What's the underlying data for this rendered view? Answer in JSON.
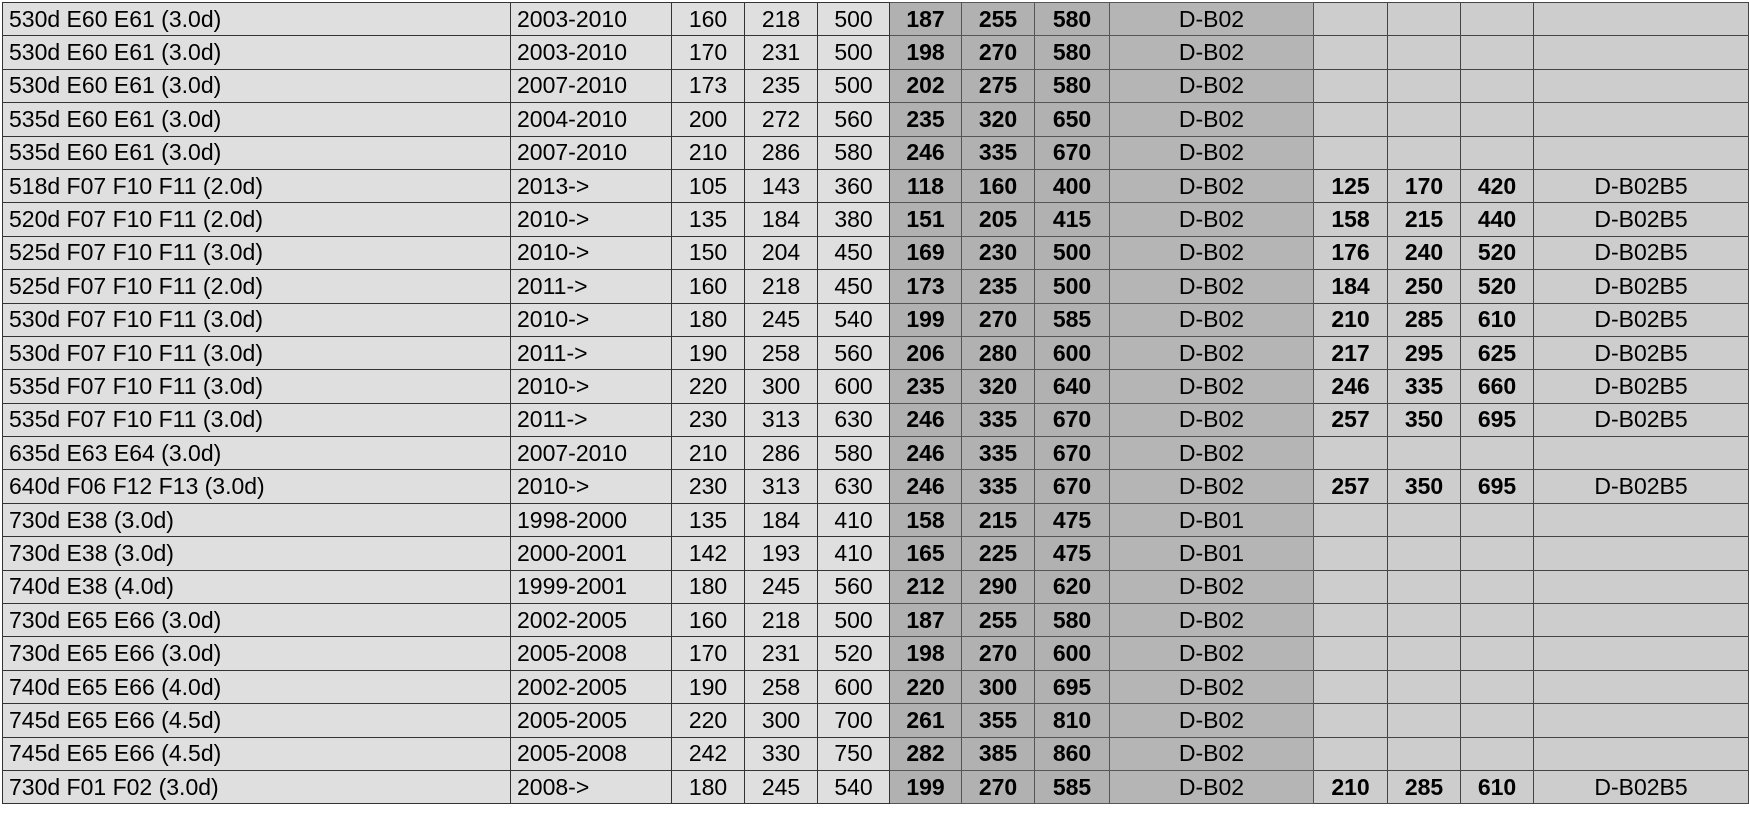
{
  "table": {
    "rows": [
      [
        "530d E60 E61 (3.0d)",
        "2003-2010",
        "160",
        "218",
        "500",
        "187",
        "255",
        "580",
        "D-B02",
        "",
        "",
        "",
        ""
      ],
      [
        "530d E60 E61 (3.0d)",
        "2003-2010",
        "170",
        "231",
        "500",
        "198",
        "270",
        "580",
        "D-B02",
        "",
        "",
        "",
        ""
      ],
      [
        "530d E60 E61 (3.0d)",
        "2007-2010",
        "173",
        "235",
        "500",
        "202",
        "275",
        "580",
        "D-B02",
        "",
        "",
        "",
        ""
      ],
      [
        "535d E60 E61 (3.0d)",
        "2004-2010",
        "200",
        "272",
        "560",
        "235",
        "320",
        "650",
        "D-B02",
        "",
        "",
        "",
        ""
      ],
      [
        "535d E60 E61 (3.0d)",
        "2007-2010",
        "210",
        "286",
        "580",
        "246",
        "335",
        "670",
        "D-B02",
        "",
        "",
        "",
        ""
      ],
      [
        "518d F07 F10 F11 (2.0d)",
        "2013->",
        "105",
        "143",
        "360",
        "118",
        "160",
        "400",
        "D-B02",
        "125",
        "170",
        "420",
        "D-B02B5"
      ],
      [
        "520d F07 F10 F11 (2.0d)",
        "2010->",
        "135",
        "184",
        "380",
        "151",
        "205",
        "415",
        "D-B02",
        "158",
        "215",
        "440",
        "D-B02B5"
      ],
      [
        "525d F07 F10 F11 (3.0d)",
        "2010->",
        "150",
        "204",
        "450",
        "169",
        "230",
        "500",
        "D-B02",
        "176",
        "240",
        "520",
        "D-B02B5"
      ],
      [
        "525d F07 F10 F11 (2.0d)",
        "2011->",
        "160",
        "218",
        "450",
        "173",
        "235",
        "500",
        "D-B02",
        "184",
        "250",
        "520",
        "D-B02B5"
      ],
      [
        "530d F07 F10 F11 (3.0d)",
        "2010->",
        "180",
        "245",
        "540",
        "199",
        "270",
        "585",
        "D-B02",
        "210",
        "285",
        "610",
        "D-B02B5"
      ],
      [
        "530d F07 F10 F11 (3.0d)",
        "2011->",
        "190",
        "258",
        "560",
        "206",
        "280",
        "600",
        "D-B02",
        "217",
        "295",
        "625",
        "D-B02B5"
      ],
      [
        "535d F07 F10 F11 (3.0d)",
        "2010->",
        "220",
        "300",
        "600",
        "235",
        "320",
        "640",
        "D-B02",
        "246",
        "335",
        "660",
        "D-B02B5"
      ],
      [
        "535d F07 F10 F11 (3.0d)",
        "2011->",
        "230",
        "313",
        "630",
        "246",
        "335",
        "670",
        "D-B02",
        "257",
        "350",
        "695",
        "D-B02B5"
      ],
      [
        "635d E63 E64 (3.0d)",
        "2007-2010",
        "210",
        "286",
        "580",
        "246",
        "335",
        "670",
        "D-B02",
        "",
        "",
        "",
        ""
      ],
      [
        "640d F06 F12 F13 (3.0d)",
        "2010->",
        "230",
        "313",
        "630",
        "246",
        "335",
        "670",
        "D-B02",
        "257",
        "350",
        "695",
        "D-B02B5"
      ],
      [
        "730d E38 (3.0d)",
        "1998-2000",
        "135",
        "184",
        "410",
        "158",
        "215",
        "475",
        "D-B01",
        "",
        "",
        "",
        ""
      ],
      [
        "730d E38 (3.0d)",
        "2000-2001",
        "142",
        "193",
        "410",
        "165",
        "225",
        "475",
        "D-B01",
        "",
        "",
        "",
        ""
      ],
      [
        "740d E38 (4.0d)",
        "1999-2001",
        "180",
        "245",
        "560",
        "212",
        "290",
        "620",
        "D-B02",
        "",
        "",
        "",
        ""
      ],
      [
        "730d E65 E66 (3.0d)",
        "2002-2005",
        "160",
        "218",
        "500",
        "187",
        "255",
        "580",
        "D-B02",
        "",
        "",
        "",
        ""
      ],
      [
        "730d E65 E66 (3.0d)",
        "2005-2008",
        "170",
        "231",
        "520",
        "198",
        "270",
        "600",
        "D-B02",
        "",
        "",
        "",
        ""
      ],
      [
        "740d E65 E66 (4.0d)",
        "2002-2005",
        "190",
        "258",
        "600",
        "220",
        "300",
        "695",
        "D-B02",
        "",
        "",
        "",
        ""
      ],
      [
        "745d E65 E66 (4.5d)",
        "2005-2005",
        "220",
        "300",
        "700",
        "261",
        "355",
        "810",
        "D-B02",
        "",
        "",
        "",
        ""
      ],
      [
        "745d E65 E66 (4.5d)",
        "2005-2008",
        "242",
        "330",
        "750",
        "282",
        "385",
        "860",
        "D-B02",
        "",
        "",
        "",
        ""
      ],
      [
        "730d F01 F02 (3.0d)",
        "2008->",
        "180",
        "245",
        "540",
        "199",
        "270",
        "585",
        "D-B02",
        "210",
        "285",
        "610",
        "D-B02B5"
      ]
    ]
  }
}
